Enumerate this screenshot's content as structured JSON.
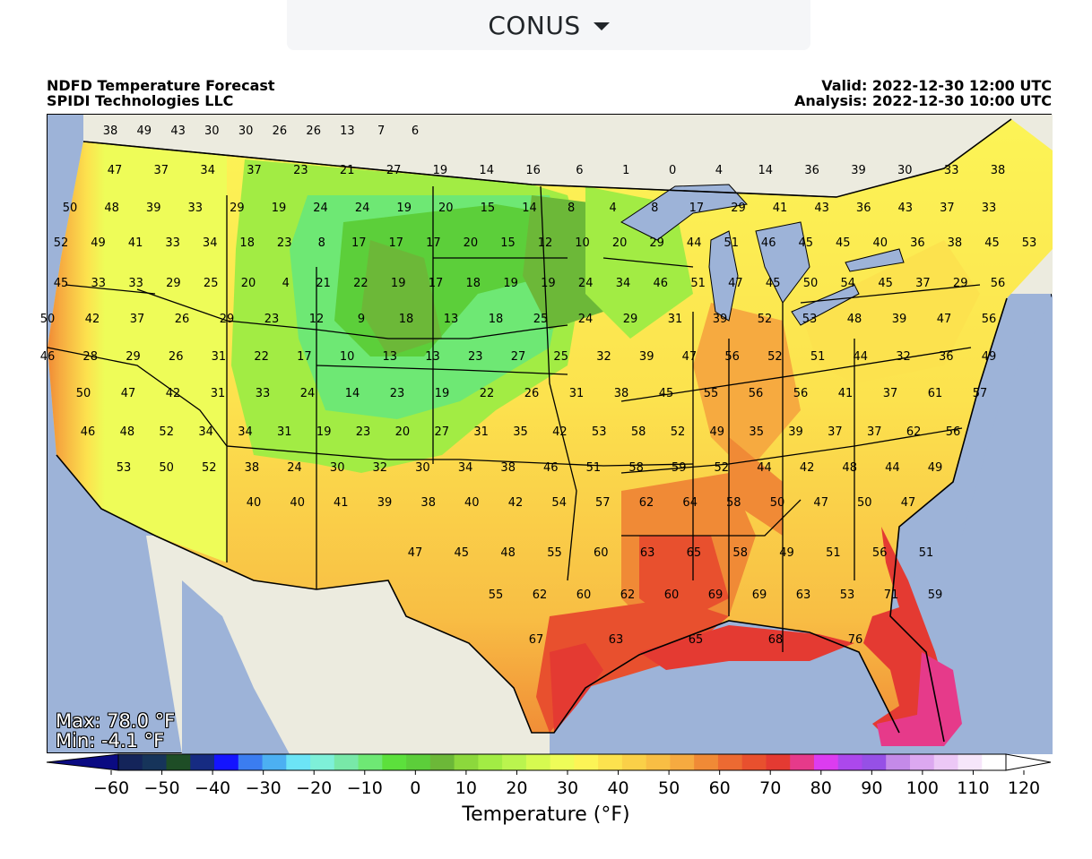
{
  "region_selector": {
    "label": "CONUS",
    "icon": "caret-down-icon"
  },
  "header": {
    "title_line1": "NDFD Temperature Forecast",
    "title_line2": "SPIDI Technologies LLC",
    "valid": "Valid: 2022-12-30 12:00 UTC",
    "analysis": "Analysis: 2022-12-30 10:00 UTC"
  },
  "stats": {
    "max": "Max: 78.0 °F",
    "min": "Min: -4.1 °F"
  },
  "colors": {
    "ocean": "#9db3d8",
    "land_outside": "#ecebdf",
    "lakes": "#9db3d8"
  },
  "colorbar": {
    "label": "Temperature (°F)",
    "ticks": [
      "−60",
      "−50",
      "−40",
      "−30",
      "−20",
      "−10",
      "0",
      "10",
      "20",
      "30",
      "40",
      "50",
      "60",
      "70",
      "80",
      "90",
      "100",
      "110",
      "120"
    ],
    "bins": [
      "#14245a",
      "#16345a",
      "#1e4d26",
      "#162b82",
      "#1414ff",
      "#3b7df0",
      "#4cb0f2",
      "#6ce4f6",
      "#7ef0d8",
      "#78e8a8",
      "#6ee874",
      "#5ce03c",
      "#5cce3a",
      "#6cb838",
      "#8cd83c",
      "#a2ec44",
      "#baf44e",
      "#d6fa50",
      "#eefc58",
      "#fcf456",
      "#fce24e",
      "#fad048",
      "#f8be44",
      "#f6aa40",
      "#f08a36",
      "#ec6a32",
      "#e8502e",
      "#e43a32",
      "#e63a8a",
      "#dc3cf0",
      "#ac48ec",
      "#9650e6",
      "#c48ae8",
      "#dca8f0",
      "#ecc8f6",
      "#f6e6fa",
      "#ffffff"
    ],
    "under": "#0a0a82",
    "over": "#ffffff"
  },
  "station_values": [
    "38",
    "49",
    "43",
    "30",
    "30",
    "26",
    "26",
    "13",
    "7",
    "6",
    "47",
    "37",
    "34",
    "37",
    "23",
    "21",
    "27",
    "19",
    "14",
    "16",
    "6",
    "1",
    "0",
    "4",
    "14",
    "36",
    "39",
    "30",
    "33",
    "38",
    "50",
    "48",
    "39",
    "33",
    "29",
    "19",
    "24",
    "24",
    "19",
    "20",
    "15",
    "14",
    "8",
    "4",
    "8",
    "17",
    "29",
    "41",
    "43",
    "36",
    "43",
    "37",
    "33",
    "52",
    "49",
    "41",
    "33",
    "34",
    "18",
    "23",
    "8",
    "17",
    "17",
    "17",
    "20",
    "15",
    "12",
    "10",
    "20",
    "29",
    "44",
    "51",
    "46",
    "45",
    "45",
    "40",
    "36",
    "38",
    "45",
    "53",
    "45",
    "33",
    "33",
    "29",
    "25",
    "20",
    "4",
    "21",
    "22",
    "19",
    "17",
    "18",
    "19",
    "19",
    "24",
    "34",
    "46",
    "51",
    "47",
    "45",
    "50",
    "54",
    "45",
    "37",
    "29",
    "56",
    "50",
    "42",
    "37",
    "26",
    "29",
    "23",
    "12",
    "9",
    "18",
    "13",
    "18",
    "25",
    "24",
    "29",
    "31",
    "39",
    "52",
    "53",
    "48",
    "39",
    "47",
    "56",
    "46",
    "28",
    "29",
    "26",
    "31",
    "22",
    "17",
    "10",
    "13",
    "13",
    "23",
    "27",
    "25",
    "32",
    "39",
    "47",
    "56",
    "52",
    "51",
    "44",
    "32",
    "36",
    "49",
    "50",
    "47",
    "42",
    "31",
    "33",
    "24",
    "14",
    "23",
    "19",
    "22",
    "26",
    "31",
    "38",
    "45",
    "55",
    "56",
    "56",
    "41",
    "37",
    "61",
    "57",
    "46",
    "48",
    "52",
    "34",
    "34",
    "31",
    "19",
    "23",
    "20",
    "27",
    "31",
    "35",
    "42",
    "53",
    "58",
    "52",
    "49",
    "35",
    "39",
    "37",
    "37",
    "62",
    "56",
    "53",
    "50",
    "52",
    "38",
    "24",
    "30",
    "32",
    "30",
    "34",
    "38",
    "46",
    "51",
    "58",
    "59",
    "52",
    "44",
    "42",
    "48",
    "44",
    "49",
    "40",
    "40",
    "41",
    "39",
    "38",
    "40",
    "42",
    "54",
    "57",
    "62",
    "64",
    "58",
    "50",
    "47",
    "50",
    "47",
    "47",
    "45",
    "48",
    "55",
    "60",
    "63",
    "65",
    "58",
    "49",
    "51",
    "56",
    "51",
    "55",
    "62",
    "60",
    "62",
    "60",
    "69",
    "69",
    "63",
    "53",
    "71",
    "59",
    "67",
    "63",
    "65",
    "68",
    "76"
  ]
}
